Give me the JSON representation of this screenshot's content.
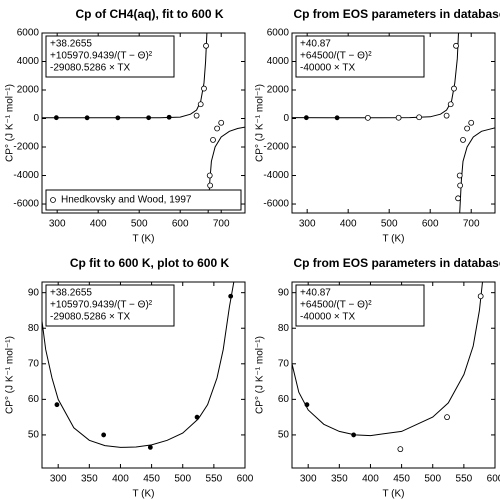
{
  "chart_data": [
    {
      "type": "scatter",
      "title": "Cp of CH4(aq), fit to 600 K",
      "annotations": [
        "+38.2655",
        "+105970.9439/(T − Θ)²",
        "-29080.5286 × TX"
      ],
      "xlabel": "T (K)",
      "ylabel": "CP° (J K⁻¹ mol⁻¹)",
      "xlim": [
        263,
        758
      ],
      "ylim": [
        -6630,
        6000
      ],
      "xticks": [
        300,
        400,
        500,
        600,
        700
      ],
      "yticks": [
        -6000,
        -4000,
        -2000,
        0,
        2000,
        4000,
        6000
      ],
      "legend": "lower left",
      "series": [
        {
          "marker": "line",
          "color": "#000000",
          "x": [
            263,
            350,
            450,
            550,
            600,
            625,
            640,
            650,
            658,
            662,
            665,
            667,
            668,
            672,
            676,
            685,
            700,
            720,
            740,
            758
          ],
          "values": [
            60,
            50,
            47,
            60,
            100,
            300,
            600,
            1200,
            2500,
            4000,
            6000,
            null,
            -6630,
            -4500,
            -3000,
            -2000,
            -1300,
            -900,
            -700,
            -600
          ]
        },
        {
          "marker": "filled",
          "color": "#000000",
          "x": [
            298,
            373,
            448,
            523,
            573
          ],
          "values": [
            58.5,
            50,
            46.5,
            55,
            89
          ]
        },
        {
          "name": "Hnedkovsky and Wood, 1997",
          "marker": "open",
          "color": "#000000",
          "x": [
            640,
            650,
            658,
            663,
            668,
            672,
            673,
            680,
            690,
            700
          ],
          "values": [
            200,
            1000,
            2100,
            5100,
            -5600,
            -4000,
            -4700,
            -1500,
            -700,
            -300
          ]
        }
      ]
    },
    {
      "type": "scatter",
      "title": "Cp from EOS parameters in database",
      "annotations": [
        "+40.87",
        "+64500/(T − Θ)²",
        "-40000 × TX"
      ],
      "xlabel": "T (K)",
      "ylabel": "CP° (J K⁻¹ mol⁻¹)",
      "xlim": [
        263,
        758
      ],
      "ylim": [
        -6630,
        6000
      ],
      "xticks": [
        300,
        400,
        500,
        600,
        700
      ],
      "yticks": [
        -6000,
        -4000,
        -2000,
        0,
        2000,
        4000,
        6000
      ],
      "series": [
        {
          "marker": "line",
          "color": "#000000",
          "x": [
            263,
            350,
            450,
            550,
            600,
            625,
            640,
            652,
            660,
            666,
            669,
            671,
            672,
            676,
            680,
            690,
            705,
            725,
            745,
            758
          ],
          "values": [
            65,
            50,
            50,
            65,
            120,
            300,
            600,
            1200,
            2500,
            4200,
            6000,
            null,
            -6630,
            -4300,
            -3000,
            -2000,
            -1300,
            -900,
            -750,
            -650
          ]
        },
        {
          "marker": "filled",
          "color": "#000000",
          "x": [
            298,
            373
          ],
          "values": [
            58.5,
            50
          ]
        },
        {
          "marker": "open",
          "color": "#000000",
          "x": [
            448,
            523,
            573,
            640,
            650,
            658,
            663,
            668,
            672,
            673,
            680,
            690,
            700
          ],
          "values": [
            46.5,
            55,
            89,
            200,
            1000,
            2100,
            5100,
            -5600,
            -4000,
            -4700,
            -1500,
            -700,
            -300
          ]
        }
      ]
    },
    {
      "type": "scatter",
      "title": "Cp fit to 600 K, plot to 600 K",
      "annotations": [
        "+38.2655",
        "+105970.9439/(T − Θ)²",
        "-29080.5286 × TX"
      ],
      "xlabel": "T (K)",
      "ylabel": "CP° (J K⁻¹ mol⁻¹)",
      "xlim": [
        274,
        600
      ],
      "ylim": [
        40.7,
        93
      ],
      "xticks": [
        300,
        350,
        400,
        450,
        500,
        550,
        600
      ],
      "yticks": [
        50,
        60,
        70,
        80,
        90
      ],
      "series": [
        {
          "marker": "line",
          "color": "#000000",
          "x": [
            274,
            280,
            290,
            300,
            325,
            350,
            375,
            400,
            425,
            450,
            475,
            500,
            525,
            540,
            555,
            565,
            575,
            582
          ],
          "values": [
            82,
            74,
            66,
            60,
            52,
            48.5,
            47,
            46.5,
            46.6,
            47.2,
            48.5,
            50.5,
            54.5,
            58.5,
            66,
            74,
            86,
            93
          ]
        },
        {
          "marker": "filled",
          "color": "#000000",
          "x": [
            298,
            373,
            448,
            523,
            577
          ],
          "values": [
            58.5,
            50,
            46.5,
            55,
            89
          ]
        }
      ]
    },
    {
      "type": "scatter",
      "title": "Cp from EOS parameters in database",
      "annotations": [
        "+40.87",
        "+64500/(T − Θ)²",
        "-40000 × TX"
      ],
      "xlabel": "T (K)",
      "ylabel": "CP° (J K⁻¹ mol⁻¹)",
      "xlim": [
        274,
        600
      ],
      "ylim": [
        40.7,
        93
      ],
      "xticks": [
        300,
        350,
        400,
        450,
        500,
        550,
        600
      ],
      "yticks": [
        50,
        60,
        70,
        80,
        90
      ],
      "series": [
        {
          "marker": "line",
          "color": "#000000",
          "x": [
            274,
            285,
            300,
            325,
            350,
            375,
            400,
            450,
            500,
            525,
            550,
            565,
            575,
            580
          ],
          "values": [
            70,
            62,
            57,
            53,
            51,
            50,
            49.8,
            51,
            55,
            59,
            67,
            75,
            85,
            93
          ]
        },
        {
          "marker": "filled",
          "color": "#000000",
          "x": [
            298,
            373
          ],
          "values": [
            58.5,
            50
          ]
        },
        {
          "marker": "open",
          "color": "#000000",
          "x": [
            448,
            523,
            577
          ],
          "values": [
            46,
            55,
            89
          ]
        }
      ]
    }
  ]
}
